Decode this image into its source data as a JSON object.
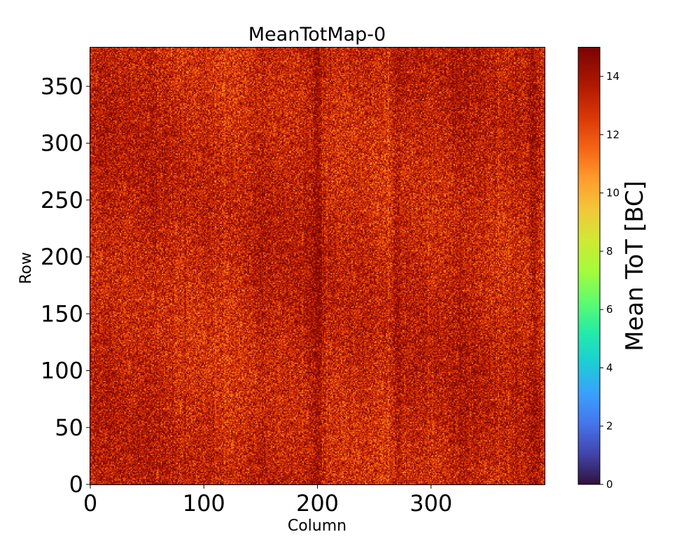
{
  "chart_data": {
    "type": "heatmap",
    "title": "MeanTotMap-0",
    "xlabel": "Column",
    "ylabel": "Row",
    "xlim": [
      0,
      400
    ],
    "ylim": [
      0,
      384
    ],
    "x_ticks": [
      0,
      100,
      200,
      300
    ],
    "y_ticks": [
      0,
      50,
      100,
      150,
      200,
      250,
      300,
      350
    ],
    "colorbar": {
      "label": "Mean ToT [BC]",
      "range": [
        0,
        15
      ],
      "ticks": [
        0,
        2,
        4,
        6,
        8,
        10,
        12,
        14
      ],
      "colormap": "turbo"
    },
    "grid": false,
    "typical_value_range": [
      11.5,
      15
    ],
    "darker_columns_approx": [
      200,
      270,
      390
    ]
  }
}
